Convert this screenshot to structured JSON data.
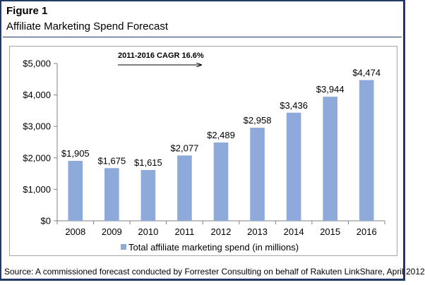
{
  "figure": {
    "label": "Figure 1",
    "title": "Affiliate Marketing Spend Forecast",
    "source": "Source: A commissioned forecast conducted by Forrester Consulting on behalf of Rakuten LinkShare, April 2012"
  },
  "chart_data": {
    "type": "bar",
    "categories": [
      "2008",
      "2009",
      "2010",
      "2011",
      "2012",
      "2013",
      "2014",
      "2015",
      "2016"
    ],
    "series": [
      {
        "name": "Total affiliate marketing spend (in millions)",
        "values": [
          1905,
          1675,
          1615,
          2077,
          2489,
          2958,
          3436,
          3944,
          4474
        ],
        "color": "#8eaadb"
      }
    ],
    "data_labels": [
      "$1,905",
      "$1,675",
      "$1,615",
      "$2,077",
      "$2,489",
      "$2,958",
      "$3,436",
      "$3,944",
      "$4,474"
    ],
    "y_ticks": [
      "$0",
      "$1,000",
      "$2,000",
      "$3,000",
      "$4,000",
      "$5,000"
    ],
    "ylim": [
      0,
      5000
    ],
    "grid": false,
    "legend": "bottom",
    "annotation": "2011-2016 CAGR 16.6%"
  }
}
